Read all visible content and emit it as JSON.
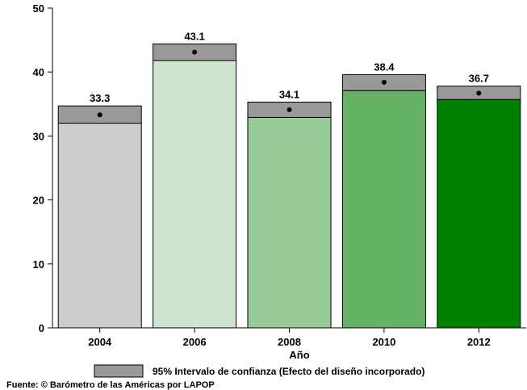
{
  "chart_data": {
    "type": "bar",
    "categories": [
      "2004",
      "2006",
      "2008",
      "2010",
      "2012"
    ],
    "values": [
      33.3,
      43.1,
      34.1,
      38.4,
      36.7
    ],
    "ci_low": [
      32.0,
      41.8,
      32.9,
      37.1,
      35.7
    ],
    "ci_high": [
      34.7,
      44.4,
      35.3,
      39.6,
      37.8
    ],
    "data_labels": [
      "33.3",
      "43.1",
      "34.1",
      "38.4",
      "36.7"
    ],
    "bar_colors": [
      "#cccccc",
      "#cce5cc",
      "#99cc99",
      "#66b266",
      "#008000"
    ],
    "ci_color": "#999999",
    "ylim": [
      0,
      50
    ],
    "yticks": [
      0,
      10,
      20,
      30,
      40,
      50
    ],
    "ytick_labels": [
      "0",
      "10",
      "20",
      "30",
      "40",
      "50"
    ],
    "xlabel": "Año",
    "ylabel": "",
    "title": "",
    "legend": {
      "label": "95% Intervalo de confianza (Efecto del diseño incorporado)",
      "position": "bottom"
    },
    "grid": false
  },
  "source": "Fuente: © Barómetro de las Américas por LAPOP"
}
